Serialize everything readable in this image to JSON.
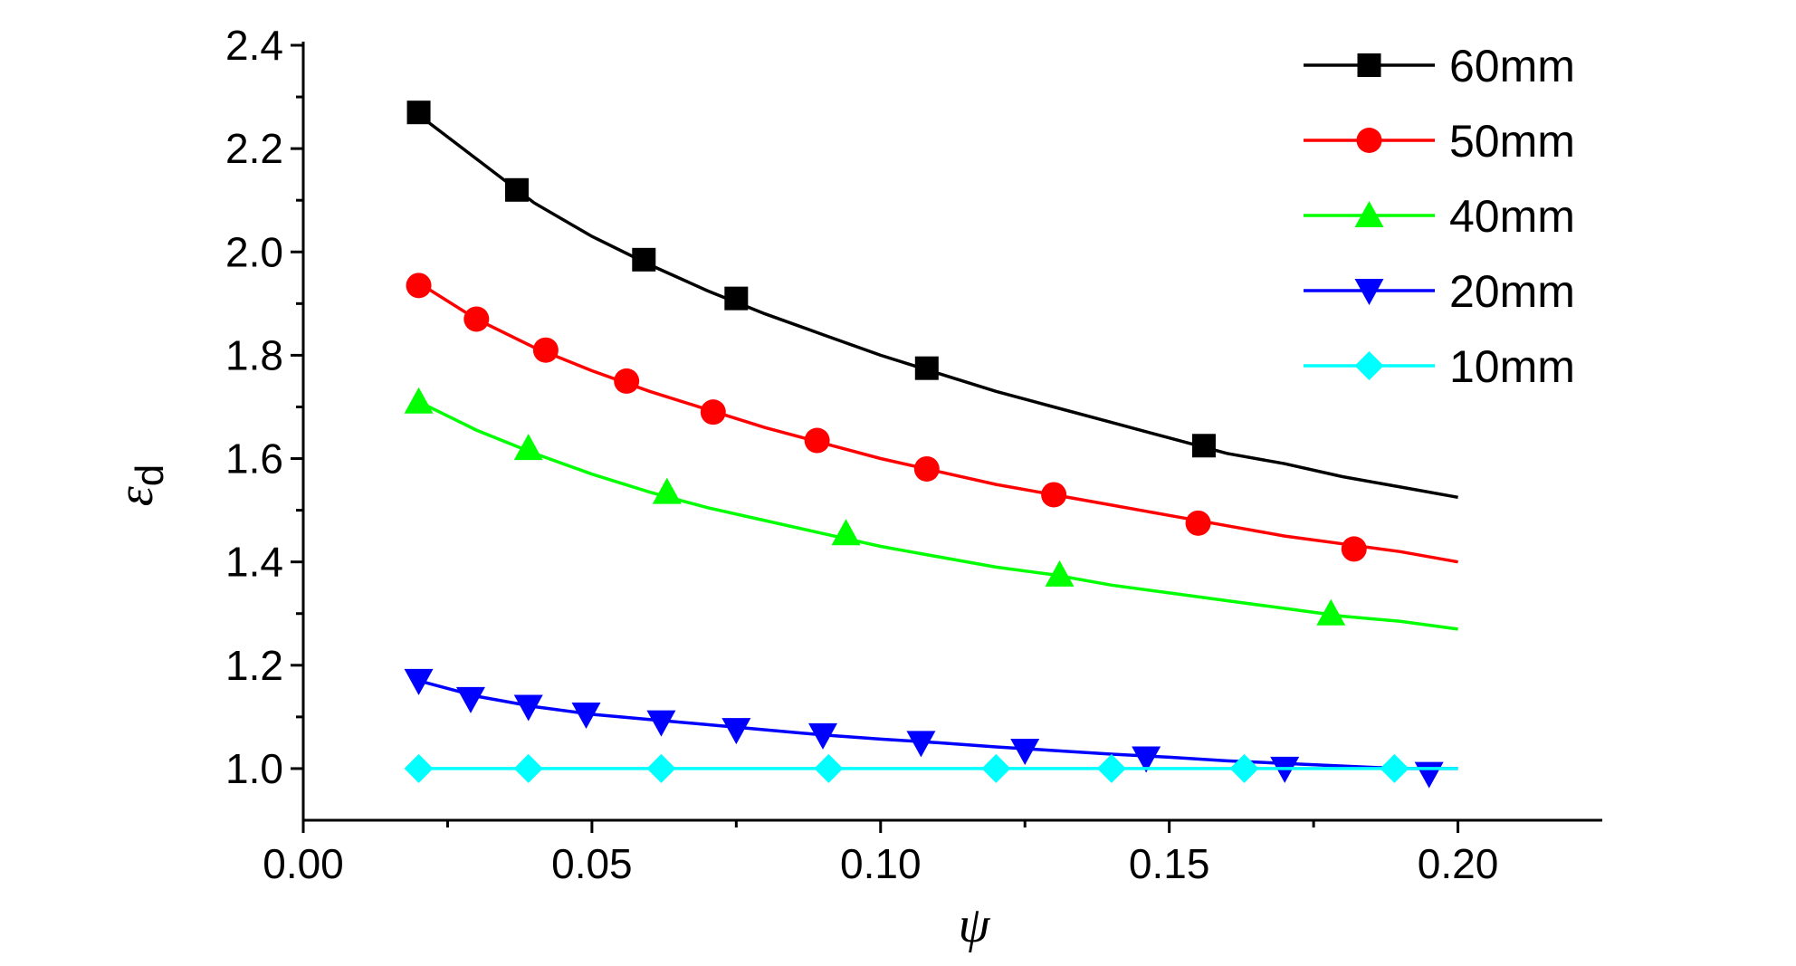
{
  "chart_data": {
    "type": "line",
    "xlabel": "ψ",
    "ylabel": "ε",
    "ylabel_subscript": "d",
    "xlim": [
      0.0,
      0.225
    ],
    "ylim": [
      0.9,
      2.4
    ],
    "xticks": [
      0.0,
      0.05,
      0.1,
      0.15,
      0.2
    ],
    "xtick_labels": [
      "0.00",
      "0.05",
      "0.10",
      "0.15",
      "0.20"
    ],
    "yticks": [
      1.0,
      1.2,
      1.4,
      1.6,
      1.8,
      2.0,
      2.2,
      2.4
    ],
    "ytick_labels": [
      "1.0",
      "1.2",
      "1.4",
      "1.6",
      "1.8",
      "2.0",
      "2.2",
      "2.4"
    ],
    "grid": false,
    "legend_position": "top-right",
    "series": [
      {
        "name": "60mm",
        "color": "#000000",
        "marker": "square",
        "curve": [
          [
            0.02,
            2.265
          ],
          [
            0.03,
            2.18
          ],
          [
            0.04,
            2.095
          ],
          [
            0.05,
            2.03
          ],
          [
            0.06,
            1.975
          ],
          [
            0.07,
            1.925
          ],
          [
            0.08,
            1.88
          ],
          [
            0.09,
            1.84
          ],
          [
            0.1,
            1.8
          ],
          [
            0.11,
            1.765
          ],
          [
            0.12,
            1.73
          ],
          [
            0.13,
            1.7
          ],
          [
            0.14,
            1.67
          ],
          [
            0.15,
            1.64
          ],
          [
            0.16,
            1.61
          ],
          [
            0.17,
            1.59
          ],
          [
            0.18,
            1.565
          ],
          [
            0.19,
            1.545
          ],
          [
            0.2,
            1.525
          ]
        ],
        "points": [
          [
            0.02,
            2.27
          ],
          [
            0.037,
            2.12
          ],
          [
            0.059,
            1.985
          ],
          [
            0.075,
            1.91
          ],
          [
            0.108,
            1.775
          ],
          [
            0.156,
            1.625
          ]
        ]
      },
      {
        "name": "50mm",
        "color": "#ff0000",
        "marker": "circle",
        "curve": [
          [
            0.02,
            1.94
          ],
          [
            0.03,
            1.87
          ],
          [
            0.04,
            1.815
          ],
          [
            0.05,
            1.77
          ],
          [
            0.06,
            1.73
          ],
          [
            0.07,
            1.695
          ],
          [
            0.08,
            1.66
          ],
          [
            0.09,
            1.63
          ],
          [
            0.1,
            1.6
          ],
          [
            0.11,
            1.575
          ],
          [
            0.12,
            1.55
          ],
          [
            0.13,
            1.53
          ],
          [
            0.14,
            1.51
          ],
          [
            0.15,
            1.49
          ],
          [
            0.16,
            1.47
          ],
          [
            0.17,
            1.45
          ],
          [
            0.18,
            1.435
          ],
          [
            0.19,
            1.42
          ],
          [
            0.2,
            1.4
          ]
        ],
        "points": [
          [
            0.02,
            1.935
          ],
          [
            0.03,
            1.87
          ],
          [
            0.042,
            1.81
          ],
          [
            0.056,
            1.75
          ],
          [
            0.071,
            1.69
          ],
          [
            0.089,
            1.635
          ],
          [
            0.108,
            1.58
          ],
          [
            0.13,
            1.53
          ],
          [
            0.155,
            1.475
          ],
          [
            0.182,
            1.425
          ]
        ]
      },
      {
        "name": "40mm",
        "color": "#00ff00",
        "marker": "triangle-up",
        "curve": [
          [
            0.02,
            1.71
          ],
          [
            0.03,
            1.655
          ],
          [
            0.04,
            1.61
          ],
          [
            0.05,
            1.57
          ],
          [
            0.06,
            1.535
          ],
          [
            0.07,
            1.505
          ],
          [
            0.08,
            1.48
          ],
          [
            0.09,
            1.455
          ],
          [
            0.1,
            1.43
          ],
          [
            0.11,
            1.41
          ],
          [
            0.12,
            1.39
          ],
          [
            0.13,
            1.375
          ],
          [
            0.14,
            1.355
          ],
          [
            0.15,
            1.34
          ],
          [
            0.16,
            1.325
          ],
          [
            0.17,
            1.31
          ],
          [
            0.18,
            1.295
          ],
          [
            0.19,
            1.285
          ],
          [
            0.2,
            1.27
          ]
        ],
        "points": [
          [
            0.02,
            1.71
          ],
          [
            0.039,
            1.62
          ],
          [
            0.063,
            1.535
          ],
          [
            0.094,
            1.455
          ],
          [
            0.131,
            1.375
          ],
          [
            0.178,
            1.3
          ]
        ]
      },
      {
        "name": "20mm",
        "color": "#0000ff",
        "marker": "triangle-down",
        "curve": [
          [
            0.02,
            1.17
          ],
          [
            0.03,
            1.14
          ],
          [
            0.04,
            1.12
          ],
          [
            0.05,
            1.105
          ],
          [
            0.06,
            1.095
          ],
          [
            0.07,
            1.085
          ],
          [
            0.08,
            1.075
          ],
          [
            0.09,
            1.065
          ],
          [
            0.1,
            1.057
          ],
          [
            0.11,
            1.05
          ],
          [
            0.12,
            1.042
          ],
          [
            0.13,
            1.035
          ],
          [
            0.14,
            1.028
          ],
          [
            0.15,
            1.022
          ],
          [
            0.16,
            1.015
          ],
          [
            0.17,
            1.01
          ],
          [
            0.18,
            1.005
          ],
          [
            0.19,
            1.0
          ],
          [
            0.2,
            1.0
          ]
        ],
        "points": [
          [
            0.02,
            1.17
          ],
          [
            0.029,
            1.135
          ],
          [
            0.039,
            1.12
          ],
          [
            0.049,
            1.105
          ],
          [
            0.062,
            1.09
          ],
          [
            0.075,
            1.075
          ],
          [
            0.09,
            1.065
          ],
          [
            0.107,
            1.05
          ],
          [
            0.125,
            1.035
          ],
          [
            0.146,
            1.02
          ],
          [
            0.17,
            1.0
          ],
          [
            0.195,
            0.99
          ]
        ]
      },
      {
        "name": "10mm",
        "color": "#00ffff",
        "marker": "diamond",
        "curve": [
          [
            0.02,
            1.0
          ],
          [
            0.2,
            1.0
          ]
        ],
        "points": [
          [
            0.02,
            1.0
          ],
          [
            0.039,
            1.0
          ],
          [
            0.062,
            1.0
          ],
          [
            0.091,
            1.0
          ],
          [
            0.12,
            1.0
          ],
          [
            0.14,
            1.0
          ],
          [
            0.163,
            1.0
          ],
          [
            0.189,
            1.0
          ]
        ]
      }
    ]
  }
}
